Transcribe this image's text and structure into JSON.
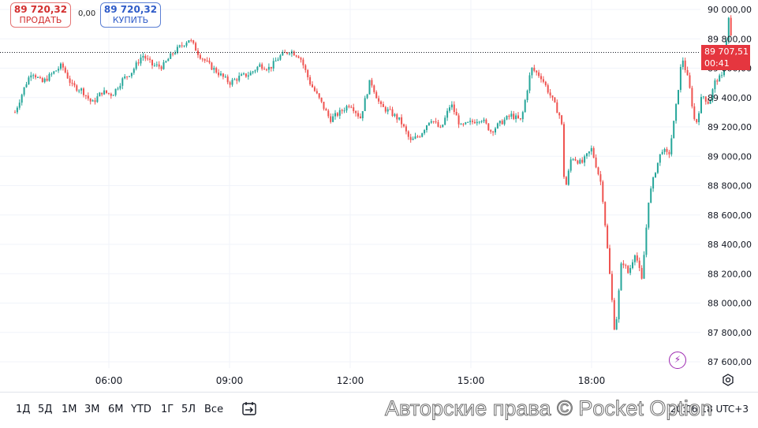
{
  "trade_panel": {
    "sell_price": "89 720,32",
    "sell_label": "ПРОДАТЬ",
    "spread": "0,00",
    "buy_price": "89 720,32",
    "buy_label": "КУПИТЬ"
  },
  "current_price_tag": {
    "price": "89 707,51",
    "countdown": "00:41",
    "color": "#e5363f"
  },
  "chart_data": {
    "type": "candlestick",
    "y_ticks": [
      "90 000,00",
      "89 800,00",
      "89 600,00",
      "89 400,00",
      "89 200,00",
      "89 000,00",
      "88 800,00",
      "88 600,00",
      "88 400,00",
      "88 200,00",
      "88 000,00",
      "87 800,00",
      "87 600,00"
    ],
    "x_ticks": [
      "06:00",
      "09:00",
      "12:00",
      "15:00",
      "18:00"
    ],
    "ylim": [
      87520,
      90100
    ],
    "current_price": 89707.51,
    "up_color": "#26a69a",
    "down_color": "#ef5350",
    "grid": true,
    "price_path": [
      [
        "03:40",
        89300
      ],
      [
        "03:55",
        89480
      ],
      [
        "04:05",
        89580
      ],
      [
        "04:20",
        89500
      ],
      [
        "04:35",
        89560
      ],
      [
        "04:50",
        89620
      ],
      [
        "05:05",
        89480
      ],
      [
        "05:20",
        89450
      ],
      [
        "05:35",
        89360
      ],
      [
        "05:50",
        89440
      ],
      [
        "06:05",
        89420
      ],
      [
        "06:20",
        89520
      ],
      [
        "06:35",
        89580
      ],
      [
        "06:50",
        89690
      ],
      [
        "07:05",
        89620
      ],
      [
        "07:20",
        89610
      ],
      [
        "07:35",
        89700
      ],
      [
        "07:50",
        89760
      ],
      [
        "08:00",
        89800
      ],
      [
        "08:15",
        89690
      ],
      [
        "08:30",
        89620
      ],
      [
        "08:45",
        89560
      ],
      [
        "09:00",
        89500
      ],
      [
        "09:15",
        89540
      ],
      [
        "09:30",
        89560
      ],
      [
        "09:45",
        89620
      ],
      [
        "10:00",
        89600
      ],
      [
        "10:15",
        89680
      ],
      [
        "10:30",
        89720
      ],
      [
        "10:45",
        89680
      ],
      [
        "11:00",
        89500
      ],
      [
        "11:15",
        89380
      ],
      [
        "11:30",
        89250
      ],
      [
        "11:45",
        89300
      ],
      [
        "12:00",
        89360
      ],
      [
        "12:15",
        89260
      ],
      [
        "12:30",
        89520
      ],
      [
        "12:45",
        89340
      ],
      [
        "13:00",
        89300
      ],
      [
        "13:15",
        89240
      ],
      [
        "13:30",
        89100
      ],
      [
        "13:45",
        89150
      ],
      [
        "14:00",
        89260
      ],
      [
        "14:15",
        89180
      ],
      [
        "14:30",
        89360
      ],
      [
        "14:45",
        89200
      ],
      [
        "15:00",
        89230
      ],
      [
        "15:15",
        89260
      ],
      [
        "15:30",
        89170
      ],
      [
        "15:45",
        89230
      ],
      [
        "16:00",
        89280
      ],
      [
        "16:15",
        89240
      ],
      [
        "16:30",
        89600
      ],
      [
        "16:45",
        89540
      ],
      [
        "17:00",
        89400
      ],
      [
        "17:15",
        89250
      ],
      [
        "17:20",
        88750
      ],
      [
        "17:30",
        89000
      ],
      [
        "17:45",
        88950
      ],
      [
        "18:00",
        89050
      ],
      [
        "18:15",
        88800
      ],
      [
        "18:25",
        88300
      ],
      [
        "18:35",
        87780
      ],
      [
        "18:45",
        88300
      ],
      [
        "18:55",
        88200
      ],
      [
        "19:05",
        88350
      ],
      [
        "19:15",
        88150
      ],
      [
        "19:25",
        88700
      ],
      [
        "19:35",
        88900
      ],
      [
        "19:45",
        89050
      ],
      [
        "19:55",
        89000
      ],
      [
        "20:05",
        89300
      ],
      [
        "20:15",
        89680
      ],
      [
        "20:25",
        89500
      ],
      [
        "20:35",
        89200
      ],
      [
        "20:45",
        89420
      ],
      [
        "20:55",
        89360
      ],
      [
        "21:05",
        89520
      ],
      [
        "21:15",
        89540
      ],
      [
        "21:25",
        89960
      ],
      [
        "21:30",
        89710
      ]
    ]
  },
  "range_buttons": [
    "1Д",
    "5Д",
    "1М",
    "3М",
    "6М",
    "YTD",
    "1Г",
    "5Л",
    "Все"
  ],
  "time_readout": "20:06:18 UTC+3",
  "watermark": "Авторские права © Pocket Option",
  "icons": {
    "goto_date": "calendar-arrow-icon",
    "flash": "lightning-icon",
    "settings": "gear-icon"
  }
}
